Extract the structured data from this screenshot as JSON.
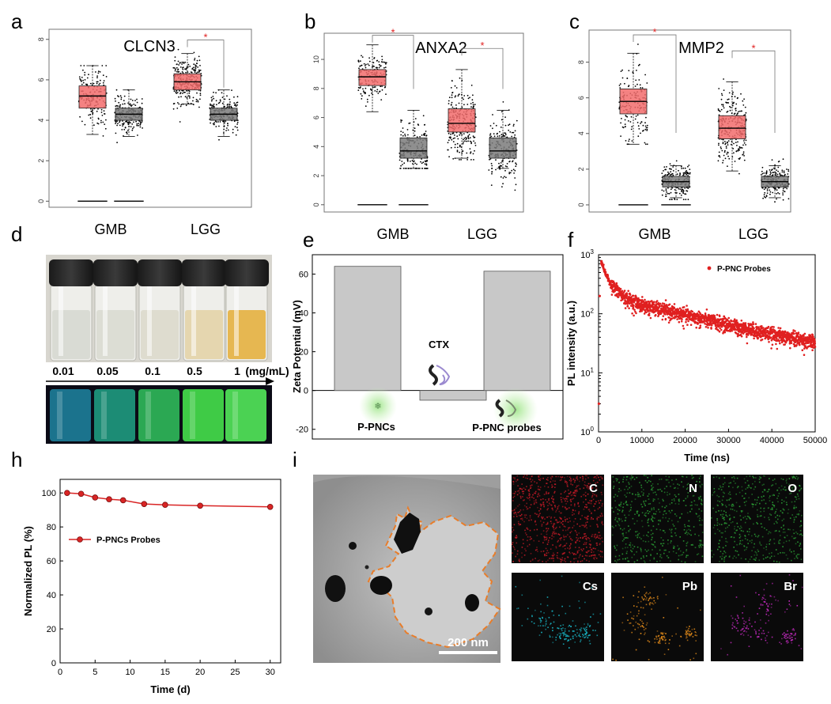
{
  "panel_letters": {
    "a": "a",
    "b": "b",
    "c": "c",
    "d": "d",
    "e": "e",
    "f": "f",
    "h": "h",
    "i": "i"
  },
  "chart_data": [
    {
      "id": "a",
      "type": "box",
      "title": "CLCN3",
      "categories": [
        "GMB",
        "LGG"
      ],
      "ylim": [
        -0.3,
        8.5
      ],
      "yticks": [
        0,
        2,
        4,
        6,
        8
      ],
      "boxes": [
        {
          "group": "GMB",
          "kind": "tumor",
          "q1": 4.6,
          "median": 5.2,
          "q3": 5.7,
          "wlo": 3.3,
          "whi": 6.7,
          "min": 2.8,
          "max": 6.7
        },
        {
          "group": "GMB",
          "kind": "normal",
          "q1": 4.0,
          "median": 4.3,
          "q3": 4.6,
          "wlo": 3.2,
          "whi": 5.5,
          "min": 2.9,
          "max": 5.5
        },
        {
          "group": "LGG",
          "kind": "tumor",
          "q1": 5.5,
          "median": 5.9,
          "q3": 6.3,
          "wlo": 4.8,
          "whi": 7.3,
          "min": 2.7,
          "max": 7.5
        },
        {
          "group": "LGG",
          "kind": "normal",
          "q1": 4.0,
          "median": 4.3,
          "q3": 4.6,
          "wlo": 3.2,
          "whi": 5.5,
          "min": 2.9,
          "max": 5.5
        }
      ],
      "significance": [
        "LGG"
      ],
      "sig_label": "*"
    },
    {
      "id": "b",
      "type": "box",
      "title": "ANXA2",
      "categories": [
        "GMB",
        "LGG"
      ],
      "ylim": [
        -0.5,
        11.8
      ],
      "yticks": [
        0,
        2,
        4,
        6,
        8,
        10
      ],
      "boxes": [
        {
          "group": "GMB",
          "kind": "tumor",
          "q1": 8.2,
          "median": 8.8,
          "q3": 9.3,
          "wlo": 6.4,
          "whi": 11.0,
          "min": 5.2,
          "max": 11.0
        },
        {
          "group": "GMB",
          "kind": "normal",
          "q1": 3.2,
          "median": 3.7,
          "q3": 4.6,
          "wlo": 2.5,
          "whi": 6.5,
          "min": 2.5,
          "max": 7.8
        },
        {
          "group": "LGG",
          "kind": "tumor",
          "q1": 5.0,
          "median": 5.6,
          "q3": 6.6,
          "wlo": 3.2,
          "whi": 9.3,
          "min": 3.1,
          "max": 10.1
        },
        {
          "group": "LGG",
          "kind": "normal",
          "q1": 3.2,
          "median": 3.7,
          "q3": 4.6,
          "wlo": 2.5,
          "whi": 6.5,
          "min": 0.1,
          "max": 7.8
        }
      ],
      "significance": [
        "GMB",
        "LGG"
      ],
      "sig_label": "*"
    },
    {
      "id": "c",
      "type": "box",
      "title": "MMP2",
      "categories": [
        "GMB",
        "LGG"
      ],
      "ylim": [
        -0.4,
        9.8
      ],
      "yticks": [
        0,
        2,
        4,
        6,
        8
      ],
      "boxes": [
        {
          "group": "GMB",
          "kind": "tumor",
          "q1": 5.1,
          "median": 5.8,
          "q3": 6.5,
          "wlo": 3.4,
          "whi": 8.5,
          "min": 3.4,
          "max": 9.0
        },
        {
          "group": "GMB",
          "kind": "normal",
          "q1": 1.0,
          "median": 1.3,
          "q3": 1.6,
          "wlo": 0.4,
          "whi": 2.2,
          "min": 0.3,
          "max": 3.9
        },
        {
          "group": "LGG",
          "kind": "tumor",
          "q1": 3.7,
          "median": 4.3,
          "q3": 5.0,
          "wlo": 1.9,
          "whi": 6.9,
          "min": 1.3,
          "max": 8.1
        },
        {
          "group": "LGG",
          "kind": "normal",
          "q1": 1.0,
          "median": 1.3,
          "q3": 1.6,
          "wlo": 0.4,
          "whi": 2.2,
          "min": 0.0,
          "max": 3.9
        }
      ],
      "significance": [
        "GMB",
        "LGG"
      ],
      "sig_label": "*"
    },
    {
      "id": "e",
      "type": "bar",
      "ylabel": "Zeta Potential (mV)",
      "ylim": [
        -25,
        70
      ],
      "yticks": [
        -20,
        0,
        20,
        40,
        60
      ],
      "categories": [
        "P-PNCs",
        "CTX",
        "P-PNC probes"
      ],
      "values": [
        64,
        -5,
        61.5
      ]
    },
    {
      "id": "f",
      "type": "scatter",
      "xlabel": "Time (ns)",
      "ylabel": "PL intensity (a.u.)",
      "xlim": [
        0,
        50000
      ],
      "xticks": [
        0,
        10000,
        20000,
        30000,
        40000,
        50000
      ],
      "ylog": true,
      "ylim": [
        1,
        1000
      ],
      "legend": "P-PNC Probes",
      "decay": {
        "points": [
          [
            0,
            3
          ],
          [
            300,
            200
          ],
          [
            600,
            800
          ],
          [
            1500,
            500
          ],
          [
            3000,
            300
          ],
          [
            6000,
            190
          ],
          [
            10000,
            140
          ],
          [
            20000,
            95
          ],
          [
            30000,
            65
          ],
          [
            40000,
            45
          ],
          [
            50000,
            33
          ]
        ]
      }
    },
    {
      "id": "h",
      "type": "line",
      "xlabel": "Time (d)",
      "ylabel": "Normalized PL (%)",
      "xlim": [
        0,
        31.5
      ],
      "xticks": [
        0,
        5,
        10,
        15,
        20,
        25,
        30
      ],
      "ylim": [
        0,
        108
      ],
      "yticks": [
        0,
        20,
        40,
        60,
        80,
        100
      ],
      "legend": "P-PNCs Probes",
      "x": [
        1,
        3,
        5,
        7,
        9,
        12,
        15,
        20,
        30
      ],
      "y": [
        100,
        99.5,
        97.3,
        96.3,
        95.7,
        93.5,
        93,
        92.5,
        91.8
      ]
    }
  ],
  "panel_d": {
    "concentrations": [
      "0.01",
      "0.05",
      "0.1",
      "0.5",
      "1"
    ],
    "unit": "(mg/mL)",
    "solution_colors": [
      "#d6d8d2",
      "#d9dad2",
      "#dcd9cc",
      "#e3d3a8",
      "#e4b040"
    ],
    "uv_colors": [
      "#1d7e9a",
      "#1e9a7f",
      "#2fb95a",
      "#45e04b",
      "#52e85a"
    ]
  },
  "panel_e_labels": {
    "ppncs": "P-PNCs",
    "ctx": "CTX",
    "probes": "P-PNC probes"
  },
  "panel_i": {
    "scale_bar": "200 nm",
    "maps": [
      {
        "label": "C",
        "color": "#c01a26"
      },
      {
        "label": "N",
        "color": "#2a9a34"
      },
      {
        "label": "O",
        "color": "#2a9a34"
      },
      {
        "label": "Cs",
        "color": "#18b6c6"
      },
      {
        "label": "Pb",
        "color": "#e88e1a"
      },
      {
        "label": "Br",
        "color": "#c62ac2"
      }
    ]
  },
  "colors": {
    "tumor": "#f26c6c",
    "normal": "#7b7b7b",
    "red": "#e02020",
    "bar": "#c8c8c8",
    "tem_outline": "#e87d2a"
  }
}
